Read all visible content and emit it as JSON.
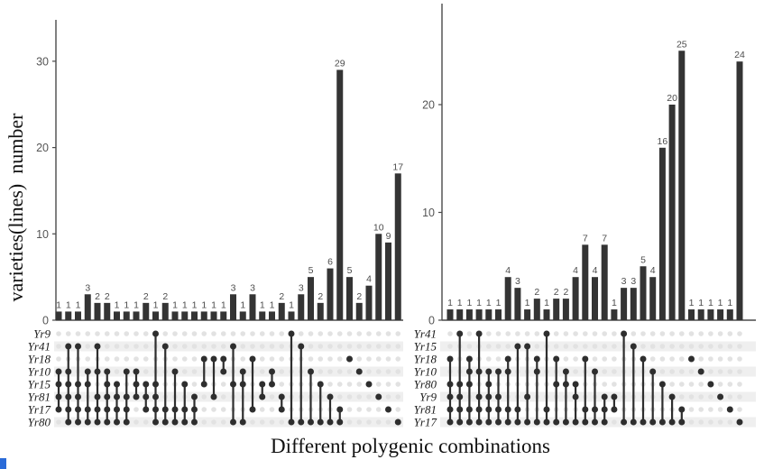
{
  "y_axis_label": "varieties(lines)  number",
  "x_axis_label": "Different polygenic combinations",
  "colors": {
    "bar": "#343434",
    "dot_filled": "#2e2e2e",
    "dot_empty": "#e2e2e2",
    "band": "#efefef",
    "axis": "#4a4a4a",
    "artifact_blue": "#2b6bd8"
  },
  "chart_data": [
    {
      "type": "bar",
      "subtype": "upset",
      "panel": "left",
      "ylabel": "varieties(lines) number",
      "yticks": [
        0,
        10,
        20,
        30
      ],
      "ylim": [
        0,
        33
      ],
      "grid": false,
      "rows": [
        "Yr9",
        "Yr41",
        "Yr18",
        "Yr10",
        "Yr15",
        "Yr81",
        "Yr17",
        "Yr80"
      ],
      "columns": [
        {
          "value": 1,
          "sets": [
            "Yr10",
            "Yr15",
            "Yr81",
            "Yr17"
          ]
        },
        {
          "value": 1,
          "sets": [
            "Yr41",
            "Yr10",
            "Yr15",
            "Yr81",
            "Yr17",
            "Yr80"
          ]
        },
        {
          "value": 1,
          "sets": [
            "Yr41",
            "Yr15",
            "Yr81",
            "Yr17",
            "Yr80"
          ]
        },
        {
          "value": 3,
          "sets": [
            "Yr10",
            "Yr15",
            "Yr17",
            "Yr80"
          ]
        },
        {
          "value": 2,
          "sets": [
            "Yr41",
            "Yr10",
            "Yr81",
            "Yr17",
            "Yr80"
          ]
        },
        {
          "value": 2,
          "sets": [
            "Yr10",
            "Yr15",
            "Yr81",
            "Yr17",
            "Yr80"
          ]
        },
        {
          "value": 1,
          "sets": [
            "Yr15",
            "Yr81",
            "Yr17",
            "Yr80"
          ]
        },
        {
          "value": 1,
          "sets": [
            "Yr10",
            "Yr81",
            "Yr17",
            "Yr80"
          ]
        },
        {
          "value": 1,
          "sets": [
            "Yr10",
            "Yr15",
            "Yr81"
          ]
        },
        {
          "value": 2,
          "sets": [
            "Yr15",
            "Yr81",
            "Yr17"
          ]
        },
        {
          "value": 1,
          "sets": [
            "Yr9",
            "Yr15",
            "Yr81",
            "Yr17",
            "Yr80"
          ]
        },
        {
          "value": 2,
          "sets": [
            "Yr41",
            "Yr17",
            "Yr80"
          ]
        },
        {
          "value": 1,
          "sets": [
            "Yr10",
            "Yr17",
            "Yr80"
          ]
        },
        {
          "value": 1,
          "sets": [
            "Yr15",
            "Yr17",
            "Yr80"
          ]
        },
        {
          "value": 1,
          "sets": [
            "Yr81",
            "Yr17",
            "Yr80"
          ]
        },
        {
          "value": 1,
          "sets": [
            "Yr18",
            "Yr15"
          ]
        },
        {
          "value": 1,
          "sets": [
            "Yr18",
            "Yr81"
          ]
        },
        {
          "value": 1,
          "sets": [
            "Yr18",
            "Yr10"
          ]
        },
        {
          "value": 3,
          "sets": [
            "Yr41",
            "Yr15",
            "Yr80"
          ]
        },
        {
          "value": 1,
          "sets": [
            "Yr10",
            "Yr15",
            "Yr80"
          ]
        },
        {
          "value": 3,
          "sets": [
            "Yr18",
            "Yr17"
          ]
        },
        {
          "value": 1,
          "sets": [
            "Yr15",
            "Yr81"
          ]
        },
        {
          "value": 1,
          "sets": [
            "Yr10",
            "Yr15"
          ]
        },
        {
          "value": 2,
          "sets": [
            "Yr81",
            "Yr17"
          ]
        },
        {
          "value": 1,
          "sets": [
            "Yr9",
            "Yr80"
          ]
        },
        {
          "value": 3,
          "sets": [
            "Yr41",
            "Yr80"
          ]
        },
        {
          "value": 5,
          "sets": [
            "Yr10",
            "Yr80"
          ]
        },
        {
          "value": 2,
          "sets": [
            "Yr15",
            "Yr80"
          ]
        },
        {
          "value": 6,
          "sets": [
            "Yr81",
            "Yr80"
          ]
        },
        {
          "value": 29,
          "sets": [
            "Yr17",
            "Yr80"
          ]
        },
        {
          "value": 5,
          "sets": [
            "Yr18"
          ]
        },
        {
          "value": 2,
          "sets": [
            "Yr10"
          ]
        },
        {
          "value": 4,
          "sets": [
            "Yr15"
          ]
        },
        {
          "value": 10,
          "sets": [
            "Yr81"
          ]
        },
        {
          "value": 9,
          "sets": [
            "Yr17"
          ]
        },
        {
          "value": 17,
          "sets": [
            "Yr80"
          ]
        }
      ]
    },
    {
      "type": "bar",
      "subtype": "upset",
      "panel": "right",
      "ylabel": "",
      "yticks": [
        0,
        10,
        20
      ],
      "ylim": [
        0,
        27
      ],
      "grid": false,
      "rows": [
        "Yr41",
        "Yr15",
        "Yr18",
        "Yr10",
        "Yr80",
        "Yr9",
        "Yr81",
        "Yr17"
      ],
      "columns": [
        {
          "value": 1,
          "sets": [
            "Yr18",
            "Yr80",
            "Yr9",
            "Yr81",
            "Yr17"
          ]
        },
        {
          "value": 1,
          "sets": [
            "Yr41",
            "Yr80",
            "Yr9",
            "Yr81",
            "Yr17"
          ]
        },
        {
          "value": 1,
          "sets": [
            "Yr18",
            "Yr10",
            "Yr80",
            "Yr81",
            "Yr17"
          ]
        },
        {
          "value": 1,
          "sets": [
            "Yr41",
            "Yr10",
            "Yr9",
            "Yr81",
            "Yr17"
          ]
        },
        {
          "value": 1,
          "sets": [
            "Yr10",
            "Yr80",
            "Yr9",
            "Yr81",
            "Yr17"
          ]
        },
        {
          "value": 1,
          "sets": [
            "Yr10",
            "Yr9",
            "Yr81",
            "Yr17"
          ]
        },
        {
          "value": 4,
          "sets": [
            "Yr18",
            "Yr10",
            "Yr81",
            "Yr17"
          ]
        },
        {
          "value": 3,
          "sets": [
            "Yr15",
            "Yr81",
            "Yr17"
          ]
        },
        {
          "value": 1,
          "sets": [
            "Yr15",
            "Yr9",
            "Yr17"
          ]
        },
        {
          "value": 2,
          "sets": [
            "Yr18",
            "Yr10",
            "Yr17"
          ]
        },
        {
          "value": 1,
          "sets": [
            "Yr41",
            "Yr81",
            "Yr17"
          ]
        },
        {
          "value": 2,
          "sets": [
            "Yr18",
            "Yr80",
            "Yr17"
          ]
        },
        {
          "value": 2,
          "sets": [
            "Yr10",
            "Yr80",
            "Yr17"
          ]
        },
        {
          "value": 4,
          "sets": [
            "Yr80",
            "Yr9",
            "Yr17"
          ]
        },
        {
          "value": 7,
          "sets": [
            "Yr18",
            "Yr81",
            "Yr17"
          ]
        },
        {
          "value": 4,
          "sets": [
            "Yr10",
            "Yr81",
            "Yr17"
          ]
        },
        {
          "value": 7,
          "sets": [
            "Yr9",
            "Yr81",
            "Yr17"
          ]
        },
        {
          "value": 1,
          "sets": [
            "Yr9",
            "Yr81"
          ]
        },
        {
          "value": 3,
          "sets": [
            "Yr41",
            "Yr17"
          ]
        },
        {
          "value": 3,
          "sets": [
            "Yr15",
            "Yr17"
          ]
        },
        {
          "value": 5,
          "sets": [
            "Yr18",
            "Yr17"
          ]
        },
        {
          "value": 4,
          "sets": [
            "Yr10",
            "Yr17"
          ]
        },
        {
          "value": 16,
          "sets": [
            "Yr80",
            "Yr17"
          ]
        },
        {
          "value": 20,
          "sets": [
            "Yr9",
            "Yr17"
          ]
        },
        {
          "value": 25,
          "sets": [
            "Yr81",
            "Yr17"
          ]
        },
        {
          "value": 1,
          "sets": [
            "Yr18"
          ]
        },
        {
          "value": 1,
          "sets": [
            "Yr10"
          ]
        },
        {
          "value": 1,
          "sets": [
            "Yr80"
          ]
        },
        {
          "value": 1,
          "sets": [
            "Yr9"
          ]
        },
        {
          "value": 1,
          "sets": [
            "Yr81"
          ]
        },
        {
          "value": 24,
          "sets": [
            "Yr17"
          ]
        }
      ]
    }
  ]
}
